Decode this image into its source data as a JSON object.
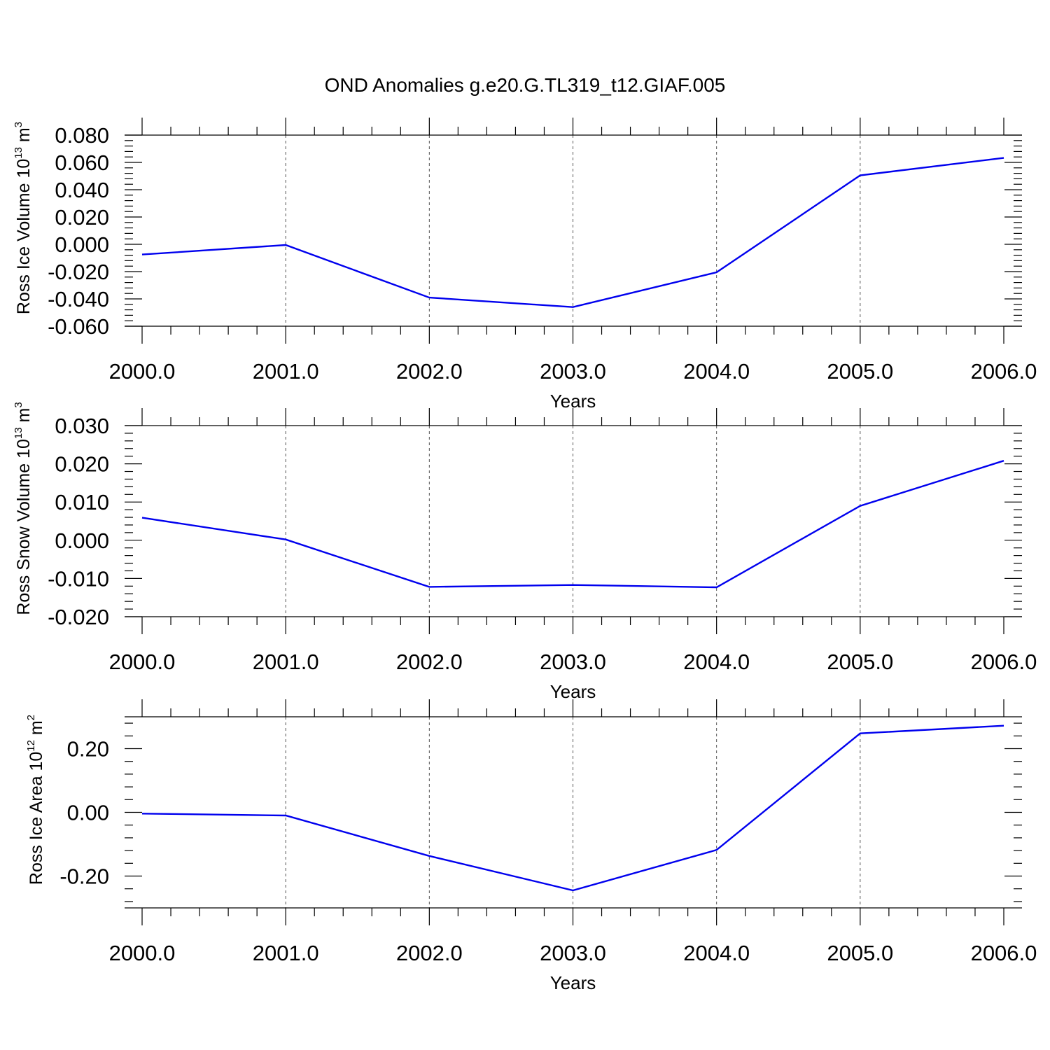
{
  "figure": {
    "title": "OND Anomalies g.e20.G.TL319_t12.GIAF.005"
  },
  "colors": {
    "line": "#0000ee",
    "axis": "#000000",
    "grid": "#555555"
  },
  "chart_data": [
    {
      "type": "line",
      "xlabel": "Years",
      "ylabel": {
        "text": "Ross Ice Volume 10",
        "exp": "13",
        "unit": "m",
        "unit_exp": "3"
      },
      "xlim": [
        2000,
        2006
      ],
      "ylim": [
        -0.06,
        0.08
      ],
      "x_ticks": [
        2000,
        2001,
        2002,
        2003,
        2004,
        2005,
        2006
      ],
      "x_tick_labels": [
        "2000.0",
        "2001.0",
        "2002.0",
        "2003.0",
        "2004.0",
        "2005.0",
        "2006.0"
      ],
      "y_ticks": [
        -0.06,
        -0.04,
        -0.02,
        0.0,
        0.02,
        0.04,
        0.06,
        0.08
      ],
      "y_tick_labels": [
        "-0.060",
        "-0.040",
        "-0.020",
        "0.000",
        "0.020",
        "0.040",
        "0.060",
        "0.080"
      ],
      "grid": "vertical dashed at major x ticks",
      "series": [
        {
          "x": [
            2000,
            2001,
            2002,
            2003,
            2004,
            2005,
            2006
          ],
          "values": [
            -0.0075,
            -0.0005,
            -0.039,
            -0.046,
            -0.0205,
            0.0505,
            0.0633
          ]
        }
      ]
    },
    {
      "type": "line",
      "xlabel": "Years",
      "ylabel": {
        "text": "Ross Snow Volume 10",
        "exp": "13",
        "unit": "m",
        "unit_exp": "3"
      },
      "xlim": [
        2000,
        2006
      ],
      "ylim": [
        -0.02,
        0.03
      ],
      "x_ticks": [
        2000,
        2001,
        2002,
        2003,
        2004,
        2005,
        2006
      ],
      "x_tick_labels": [
        "2000.0",
        "2001.0",
        "2002.0",
        "2003.0",
        "2004.0",
        "2005.0",
        "2006.0"
      ],
      "y_ticks": [
        -0.02,
        -0.01,
        0.0,
        0.01,
        0.02,
        0.03
      ],
      "y_tick_labels": [
        "-0.020",
        "-0.010",
        "0.000",
        "0.010",
        "0.020",
        "0.030"
      ],
      "grid": "vertical dashed at major x ticks",
      "series": [
        {
          "x": [
            2000,
            2001,
            2002,
            2003,
            2004,
            2005,
            2006
          ],
          "values": [
            0.0059,
            0.0002,
            -0.0122,
            -0.0117,
            -0.0123,
            0.009,
            0.0208
          ]
        }
      ]
    },
    {
      "type": "line",
      "xlabel": "Years",
      "ylabel": {
        "text": "Ross Ice Area 10",
        "exp": "12",
        "unit": "m",
        "unit_exp": "2"
      },
      "xlim": [
        2000,
        2006
      ],
      "ylim": [
        -0.3,
        0.3
      ],
      "x_ticks": [
        2000,
        2001,
        2002,
        2003,
        2004,
        2005,
        2006
      ],
      "x_tick_labels": [
        "2000.0",
        "2001.0",
        "2002.0",
        "2003.0",
        "2004.0",
        "2005.0",
        "2006.0"
      ],
      "y_ticks": [
        -0.2,
        0.0,
        0.2
      ],
      "y_tick_labels": [
        "-0.20",
        "0.00",
        "0.20"
      ],
      "grid": "vertical dashed at major x ticks",
      "series": [
        {
          "x": [
            2000,
            2001,
            2002,
            2003,
            2004,
            2005,
            2006
          ],
          "values": [
            -0.004,
            -0.01,
            -0.137,
            -0.245,
            -0.118,
            0.248,
            0.272
          ]
        }
      ]
    }
  ]
}
